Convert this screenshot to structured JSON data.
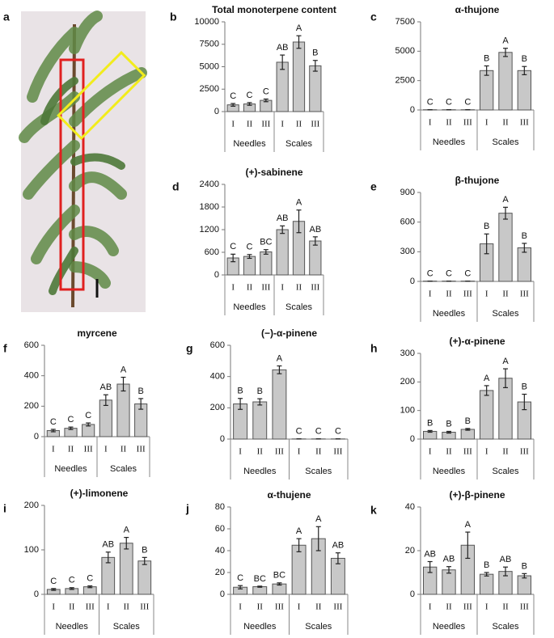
{
  "photo": {
    "panel_label": "a"
  },
  "chart_data": [
    {
      "type": "bar",
      "panel_label": "b",
      "title": "Total monoterpene content",
      "categories": [
        "I",
        "II",
        "III",
        "I",
        "II",
        "III"
      ],
      "group_labels": [
        "Needles",
        "Scales"
      ],
      "values": [
        750,
        850,
        1250,
        5500,
        7750,
        5100
      ],
      "errors": [
        150,
        150,
        150,
        800,
        700,
        600
      ],
      "letters": [
        "C",
        "C",
        "C",
        "AB",
        "A",
        "B"
      ],
      "ylim": [
        0,
        10000
      ],
      "yticks": [
        0,
        2500,
        5000,
        7500,
        10000
      ],
      "color": "#c8c8c8"
    },
    {
      "type": "bar",
      "panel_label": "c",
      "title": "α-thujone",
      "categories": [
        "I",
        "II",
        "III",
        "I",
        "II",
        "III"
      ],
      "group_labels": [
        "Needles",
        "Scales"
      ],
      "values": [
        20,
        20,
        20,
        3350,
        4900,
        3350
      ],
      "errors": [
        0,
        0,
        0,
        400,
        350,
        350
      ],
      "letters": [
        "C",
        "C",
        "C",
        "B",
        "A",
        "B"
      ],
      "ylim": [
        0,
        7500
      ],
      "yticks": [
        0,
        2500,
        5000,
        7500
      ],
      "color": "#c8c8c8"
    },
    {
      "type": "bar",
      "panel_label": "d",
      "title": "(+)-sabinene",
      "categories": [
        "I",
        "II",
        "III",
        "I",
        "II",
        "III"
      ],
      "group_labels": [
        "Needles",
        "Scales"
      ],
      "values": [
        450,
        490,
        610,
        1200,
        1420,
        900
      ],
      "errors": [
        100,
        50,
        60,
        100,
        300,
        110
      ],
      "letters": [
        "C",
        "C",
        "BC",
        "AB",
        "A",
        "AB"
      ],
      "ylim": [
        0,
        2400
      ],
      "yticks": [
        0,
        600,
        1200,
        1800,
        2400
      ],
      "color": "#c8c8c8"
    },
    {
      "type": "bar",
      "panel_label": "e",
      "title": "β-thujone",
      "categories": [
        "I",
        "II",
        "III",
        "I",
        "II",
        "III"
      ],
      "group_labels": [
        "Needles",
        "Scales"
      ],
      "values": [
        3,
        3,
        3,
        380,
        690,
        340
      ],
      "errors": [
        0,
        0,
        0,
        100,
        60,
        45
      ],
      "letters": [
        "C",
        "C",
        "C",
        "B",
        "A",
        "B"
      ],
      "ylim": [
        0,
        900
      ],
      "yticks": [
        0,
        300,
        600,
        900
      ],
      "color": "#c8c8c8"
    },
    {
      "type": "bar",
      "panel_label": "f",
      "title": "myrcene",
      "categories": [
        "I",
        "II",
        "III",
        "I",
        "II",
        "III"
      ],
      "group_labels": [
        "Needles",
        "Scales"
      ],
      "values": [
        40,
        55,
        80,
        240,
        345,
        215
      ],
      "errors": [
        8,
        8,
        10,
        35,
        45,
        35
      ],
      "letters": [
        "C",
        "C",
        "C",
        "AB",
        "A",
        "B"
      ],
      "ylim": [
        0,
        600
      ],
      "yticks": [
        0,
        200,
        400,
        600
      ],
      "color": "#c8c8c8"
    },
    {
      "type": "bar",
      "panel_label": "g",
      "title": "(−)-α-pinene",
      "categories": [
        "I",
        "II",
        "III",
        "I",
        "II",
        "III"
      ],
      "group_labels": [
        "Needles",
        "Scales"
      ],
      "values": [
        225,
        238,
        443,
        1,
        1,
        1
      ],
      "errors": [
        35,
        20,
        25,
        0,
        0,
        0
      ],
      "letters": [
        "B",
        "B",
        "A",
        "C",
        "C",
        "C"
      ],
      "ylim": [
        0,
        600
      ],
      "yticks": [
        0,
        200,
        400,
        600
      ],
      "color": "#c8c8c8"
    },
    {
      "type": "bar",
      "panel_label": "h",
      "title": "(+)-α-pinene",
      "categories": [
        "I",
        "II",
        "III",
        "I",
        "II",
        "III"
      ],
      "group_labels": [
        "Needles",
        "Scales"
      ],
      "values": [
        27,
        24,
        34,
        170,
        213,
        130
      ],
      "errors": [
        3,
        3,
        3,
        17,
        33,
        27
      ],
      "letters": [
        "B",
        "B",
        "B",
        "A",
        "A",
        "B"
      ],
      "ylim": [
        0,
        300
      ],
      "yticks": [
        0,
        100,
        200,
        300
      ],
      "color": "#c8c8c8"
    },
    {
      "type": "bar",
      "panel_label": "i",
      "title": "(+)-limonene",
      "categories": [
        "I",
        "II",
        "III",
        "I",
        "II",
        "III"
      ],
      "group_labels": [
        "Needles",
        "Scales"
      ],
      "values": [
        11,
        13,
        17,
        83,
        115,
        75
      ],
      "errors": [
        2,
        2,
        2,
        12,
        13,
        8
      ],
      "letters": [
        "C",
        "C",
        "C",
        "AB",
        "A",
        "B"
      ],
      "ylim": [
        0,
        200
      ],
      "yticks": [
        0,
        100,
        200
      ],
      "color": "#c8c8c8"
    },
    {
      "type": "bar",
      "panel_label": "j",
      "title": "α-thujene",
      "categories": [
        "I",
        "II",
        "III",
        "I",
        "II",
        "III"
      ],
      "group_labels": [
        "Needles",
        "Scales"
      ],
      "values": [
        6.5,
        7,
        9.5,
        45,
        51,
        33
      ],
      "errors": [
        1.5,
        0.5,
        1,
        6,
        11,
        5
      ],
      "letters": [
        "C",
        "BC",
        "BC",
        "A",
        "A",
        "AB"
      ],
      "ylim": [
        0,
        80
      ],
      "yticks": [
        0,
        20,
        40,
        60,
        80
      ],
      "color": "#c8c8c8"
    },
    {
      "type": "bar",
      "panel_label": "k",
      "title": "(+)-β-pinene",
      "categories": [
        "I",
        "II",
        "III",
        "I",
        "II",
        "III"
      ],
      "group_labels": [
        "Needles",
        "Scales"
      ],
      "values": [
        12.5,
        11.2,
        22.5,
        9.2,
        10.5,
        8.5
      ],
      "errors": [
        2.5,
        1.5,
        6,
        0.8,
        2,
        1
      ],
      "letters": [
        "AB",
        "AB",
        "A",
        "B",
        "AB",
        "B"
      ],
      "ylim": [
        0,
        40
      ],
      "yticks": [
        0,
        20,
        40
      ],
      "color": "#c8c8c8"
    }
  ]
}
